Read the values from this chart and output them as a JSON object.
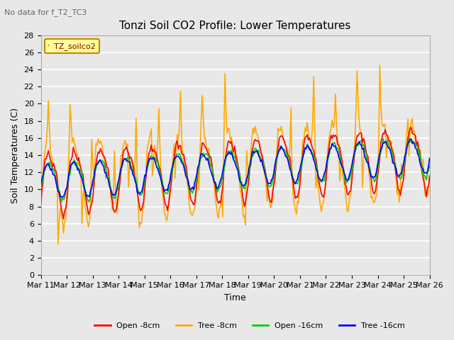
{
  "title": "Tonzi Soil CO2 Profile: Lower Temperatures",
  "subtitle": "No data for f_T2_TC3",
  "xlabel": "Time",
  "ylabel": "Soil Temperatures (C)",
  "ylim": [
    0,
    28
  ],
  "yticks": [
    0,
    2,
    4,
    6,
    8,
    10,
    12,
    14,
    16,
    18,
    20,
    22,
    24,
    26,
    28
  ],
  "xtick_labels": [
    "Mar 11",
    "Mar 12",
    "Mar 13",
    "Mar 14",
    "Mar 15",
    "Mar 16",
    "Mar 17",
    "Mar 18",
    "Mar 19",
    "Mar 20",
    "Mar 21",
    "Mar 22",
    "Mar 23",
    "Mar 24",
    "Mar 25",
    "Mar 26"
  ],
  "legend_label": "TZ_soilco2",
  "series_labels": [
    "Open -8cm",
    "Tree -8cm",
    "Open -16cm",
    "Tree -16cm"
  ],
  "series_colors": [
    "#ff0000",
    "#ffaa00",
    "#00cc00",
    "#0000ff"
  ],
  "background_color": "#e8e8e8",
  "plot_bg_color": "#e8e8e8",
  "grid_color": "#ffffff",
  "title_fontsize": 11,
  "axis_fontsize": 9,
  "tick_fontsize": 8
}
